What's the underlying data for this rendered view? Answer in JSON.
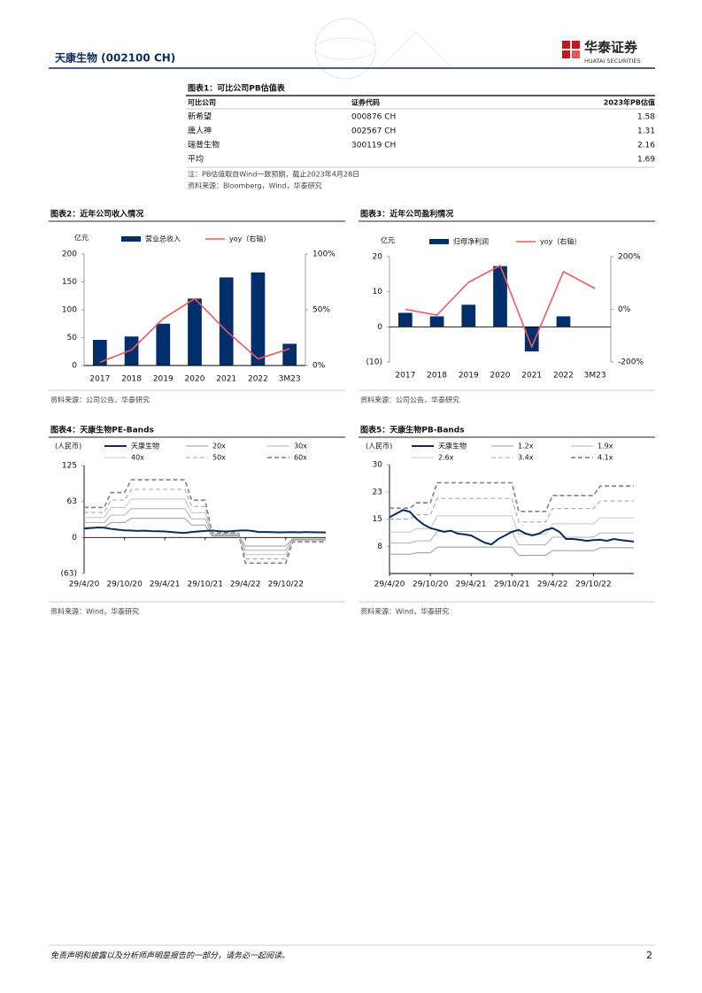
{
  "header": {
    "stock": "天康生物 (002100 CH)",
    "logo": "华泰证券",
    "logo_en": "HUATAI SECURITIES"
  },
  "table": {
    "title": "图表1：可比公司PB估值表",
    "columns": [
      "可比公司",
      "证券代码",
      "2023年PB估值"
    ],
    "rows": [
      {
        "company": "新希望",
        "code": "000876 CH",
        "pb": 1.58
      },
      {
        "company": "唐人神",
        "code": "002567 CH",
        "pb": 1.31
      },
      {
        "company": "瑞普生物",
        "code": "300119 CH",
        "pb": 2.16
      },
      {
        "company": "平均",
        "pb": 1.69
      }
    ],
    "note": "注：PB估值取自Wind一致预期，截止2023年4月28日",
    "source": "资料来源：Bloomberg，Wind，华泰研究"
  },
  "chart_data": [
    {
      "type": "combo",
      "title": "图表2：近年公司收入情况",
      "y_unit": "亿元",
      "categories": [
        "2017",
        "2018",
        "2019",
        "2020",
        "2021",
        "2022",
        "3M23"
      ],
      "series": [
        {
          "name": "营业总收入",
          "type": "bar",
          "color": "#002f6c",
          "values": [
            46,
            52,
            75,
            120,
            158,
            167,
            39
          ]
        },
        {
          "name": "yoy（右轴）",
          "type": "line",
          "axis": "y2",
          "color": "#f0585a",
          "values": [
            3,
            14,
            42,
            60,
            31,
            6,
            15
          ]
        }
      ],
      "ylim": [
        0,
        200
      ],
      "yticks": [
        0,
        50,
        100,
        150,
        200
      ],
      "y2lim": [
        0,
        100
      ],
      "y2ticks": [
        {
          "value": 0,
          "label": "0%"
        },
        {
          "value": 50,
          "label": "50%"
        },
        {
          "value": 100,
          "label": "100%"
        }
      ],
      "source": "资料来源：公司公告，华泰研究"
    },
    {
      "type": "combo",
      "title": "图表3：近年公司盈利情况",
      "y_unit": "亿元",
      "categories": [
        "2017",
        "2018",
        "2019",
        "2020",
        "2021",
        "2022",
        "3M23"
      ],
      "series": [
        {
          "name": "归母净利润",
          "type": "bar",
          "color": "#002f6c",
          "values": [
            4,
            3,
            6.3,
            17.3,
            -7,
            3,
            null
          ]
        },
        {
          "name": "yoy（右轴）",
          "type": "line",
          "axis": "y2",
          "color": "#f0585a",
          "values": [
            0,
            -22,
            103,
            166,
            -143,
            143,
            79
          ]
        }
      ],
      "ylim": [
        -10,
        20
      ],
      "yticks": [
        {
          "value": -10,
          "label": "(10)"
        },
        0,
        10,
        20
      ],
      "y2lim": [
        -200,
        200
      ],
      "y2ticks": [
        {
          "value": -200,
          "label": "-200%"
        },
        {
          "value": 0,
          "label": "0%"
        },
        {
          "value": 200,
          "label": "200%"
        }
      ],
      "source": "资料来源：公司公告，华泰研究"
    },
    {
      "type": "line",
      "title": "图表4：天康生物PE-Bands",
      "y_unit": "(人民币)",
      "x": [
        "2020-04-29",
        "2020-05-29",
        "2020-06-29",
        "2020-07-29",
        "2020-08-29",
        "2020-09-29",
        "2020-10-29",
        "2020-11-29",
        "2020-12-29",
        "2021-01-29",
        "2021-02-28",
        "2021-03-29",
        "2021-04-29",
        "2021-05-29",
        "2021-06-29",
        "2021-07-29",
        "2021-08-29",
        "2021-09-29",
        "2021-10-29",
        "2021-11-29",
        "2021-12-29",
        "2022-01-29",
        "2022-02-28",
        "2022-03-29",
        "2022-04-29",
        "2022-05-29",
        "2022-06-29",
        "2022-07-29",
        "2022-08-29",
        "2022-09-29",
        "2022-10-29",
        "2022-11-29",
        "2022-12-29",
        "2023-01-29",
        "2023-02-28",
        "2023-03-29",
        "2023-04-28"
      ],
      "series": [
        {
          "name": "天康生物",
          "color": "#0a2c5c",
          "line_width": 2,
          "values": [
            15.5,
            16.5,
            17.5,
            17,
            15,
            13.5,
            12.5,
            12,
            11.5,
            11.8,
            11,
            10.8,
            10.5,
            9.5,
            8.5,
            8,
            9.5,
            10.5,
            11.5,
            12,
            11,
            10.5,
            11,
            12,
            12.5,
            11.5,
            9.5,
            9.5,
            9.3,
            9,
            9.2,
            9.3,
            9,
            9.5,
            9.2,
            9,
            8.8
          ]
        },
        {
          "name": "20x",
          "color": "#9a9a9a",
          "line_width": 1,
          "values": [
            17.4,
            17.4,
            17.4,
            17.4,
            26,
            26,
            26,
            33.4,
            33.4,
            33.4,
            33.4,
            33.4,
            33.4,
            33.4,
            33.4,
            33.4,
            21.6,
            21.6,
            21.6,
            2.6,
            2.6,
            2.6,
            2.6,
            2.6,
            -14.8,
            -14.8,
            -14.8,
            -14.8,
            -14.8,
            -14.8,
            -14.8,
            -2.6,
            -2.6,
            -2.6,
            -2.6,
            -2.6,
            -2.6
          ]
        },
        {
          "name": "30x",
          "color": "#b0b0b0",
          "line_width": 1,
          "values": [
            26.1,
            26.1,
            26.1,
            26.1,
            39,
            39,
            39,
            50.1,
            50.1,
            50.1,
            50.1,
            50.1,
            50.1,
            50.1,
            50.1,
            50.1,
            32.4,
            32.4,
            32.4,
            3.9,
            3.9,
            3.9,
            3.9,
            3.9,
            -22.2,
            -22.2,
            -22.2,
            -22.2,
            -22.2,
            -22.2,
            -22.2,
            -3.9,
            -3.9,
            -3.9,
            -3.9,
            -3.9,
            -3.9
          ]
        },
        {
          "name": "40x",
          "color": "#c4c4c4",
          "line_width": 1,
          "values": [
            34.8,
            34.8,
            34.8,
            34.8,
            52,
            52,
            52,
            66.8,
            66.8,
            66.8,
            66.8,
            66.8,
            66.8,
            66.8,
            66.8,
            66.8,
            43.2,
            43.2,
            43.2,
            5.2,
            5.2,
            5.2,
            5.2,
            5.2,
            -29.6,
            -29.6,
            -29.6,
            -29.6,
            -29.6,
            -29.6,
            -29.6,
            -5.2,
            -5.2,
            -5.2,
            -5.2,
            -5.2,
            -5.2
          ]
        },
        {
          "name": "50x",
          "color": "#a0a0a0",
          "line_width": 1,
          "dash": true,
          "values": [
            43.5,
            43.5,
            43.5,
            43.5,
            65,
            65,
            65,
            83.5,
            83.5,
            83.5,
            83.5,
            83.5,
            83.5,
            83.5,
            83.5,
            83.5,
            54,
            54,
            54,
            6.5,
            6.5,
            6.5,
            6.5,
            6.5,
            -37,
            -37,
            -37,
            -37,
            -37,
            -37,
            -37,
            -6.5,
            -6.5,
            -6.5,
            -6.5,
            -6.5,
            -6.5
          ]
        },
        {
          "name": "60x",
          "color": "#8c8c8c",
          "line_width": 1.8,
          "dash": true,
          "values": [
            52.2,
            52.2,
            52.2,
            52.2,
            78,
            78,
            78,
            100.2,
            100.2,
            100.2,
            100.2,
            100.2,
            100.2,
            100.2,
            100.2,
            100.2,
            64.8,
            64.8,
            64.8,
            7.8,
            7.8,
            7.8,
            7.8,
            7.8,
            -44.4,
            -44.4,
            -44.4,
            -44.4,
            -44.4,
            -44.4,
            -44.4,
            -7.8,
            -7.8,
            -7.8,
            -7.8,
            -7.8,
            -7.8
          ]
        }
      ],
      "xlim": [
        "2020-04-29",
        "2023-04-28"
      ],
      "xticks": [
        {
          "value": "2020-04-29",
          "label": "29/4/20"
        },
        {
          "value": "2020-10-29",
          "label": "29/10/20"
        },
        {
          "value": "2021-04-29",
          "label": "29/4/21"
        },
        {
          "value": "2021-10-29",
          "label": "29/10/21"
        },
        {
          "value": "2022-04-29",
          "label": "29/4/22"
        },
        {
          "value": "2022-10-29",
          "label": "29/10/22"
        }
      ],
      "ylim": [
        -62.5,
        125
      ],
      "yticks": [
        {
          "value": -62.5,
          "label": "(63)"
        },
        0,
        {
          "value": 62.5,
          "label": "63"
        },
        125
      ],
      "source": "资料来源：Wind，华泰研究"
    },
    {
      "type": "line",
      "title": "图表5：天康生物PB-Bands",
      "y_unit": "(人民币)",
      "x": [
        "2020-04-29",
        "2020-05-29",
        "2020-06-29",
        "2020-07-29",
        "2020-08-29",
        "2020-09-29",
        "2020-10-29",
        "2020-11-29",
        "2020-12-29",
        "2021-01-29",
        "2021-02-28",
        "2021-03-29",
        "2021-04-29",
        "2021-05-29",
        "2021-06-29",
        "2021-07-29",
        "2021-08-29",
        "2021-09-29",
        "2021-10-29",
        "2021-11-29",
        "2021-12-29",
        "2022-01-29",
        "2022-02-28",
        "2022-03-29",
        "2022-04-29",
        "2022-05-29",
        "2022-06-29",
        "2022-07-29",
        "2022-08-29",
        "2022-09-29",
        "2022-10-29",
        "2022-11-29",
        "2022-12-29",
        "2023-01-29",
        "2023-02-28",
        "2023-03-29",
        "2023-04-28"
      ],
      "series": [
        {
          "name": "天康生物",
          "color": "#0a2c5c",
          "line_width": 2,
          "values": [
            15.5,
            16.5,
            17.5,
            17,
            15,
            13.5,
            12.5,
            12,
            11.5,
            11.8,
            11,
            10.8,
            10.5,
            9.5,
            8.5,
            8,
            9.5,
            10.5,
            11.5,
            12,
            11,
            10.5,
            11,
            12,
            12.5,
            11.5,
            9.5,
            9.5,
            9.3,
            9,
            9.2,
            9.3,
            9,
            9.5,
            9.2,
            9,
            8.8
          ]
        },
        {
          "name": "1.2x",
          "color": "#9a9a9a",
          "line_width": 1,
          "values": [
            5.3,
            5.3,
            5.3,
            5.3,
            5.7,
            5.7,
            5.7,
            7.3,
            7.3,
            7.3,
            7.3,
            7.3,
            7.3,
            7.3,
            7.3,
            7.3,
            7.3,
            7.3,
            7.3,
            5,
            5,
            5,
            5,
            5,
            6.3,
            6.3,
            6.3,
            6.3,
            6.3,
            6.3,
            6.3,
            7.1,
            7.1,
            7.1,
            7.1,
            7.1,
            7.1
          ]
        },
        {
          "name": "1.9x",
          "color": "#b0b0b0",
          "line_width": 1,
          "values": [
            8.4,
            8.4,
            8.4,
            8.4,
            9,
            9,
            9,
            11.6,
            11.6,
            11.6,
            11.6,
            11.6,
            11.6,
            11.6,
            11.6,
            11.6,
            11.6,
            11.6,
            11.6,
            7.9,
            7.9,
            7.9,
            7.9,
            7.9,
            10,
            10,
            10,
            10,
            10,
            10,
            10,
            11.2,
            11.2,
            11.2,
            11.2,
            11.2,
            11.2
          ]
        },
        {
          "name": "2.6x",
          "color": "#c4c4c4",
          "line_width": 1,
          "values": [
            11.4,
            11.4,
            11.4,
            11.4,
            12.4,
            12.4,
            12.4,
            15.9,
            15.9,
            15.9,
            15.9,
            15.9,
            15.9,
            15.9,
            15.9,
            15.9,
            15.9,
            15.9,
            15.9,
            10.8,
            10.8,
            10.8,
            10.8,
            10.8,
            13.7,
            13.7,
            13.7,
            13.7,
            13.7,
            13.7,
            13.7,
            15.3,
            15.3,
            15.3,
            15.3,
            15.3,
            15.3
          ]
        },
        {
          "name": "3.4x",
          "color": "#a0a0a0",
          "line_width": 1,
          "dash": true,
          "values": [
            15,
            15,
            15,
            15,
            16.2,
            16.2,
            16.2,
            20.7,
            20.7,
            20.7,
            20.7,
            20.7,
            20.7,
            20.7,
            20.7,
            20.7,
            20.7,
            20.7,
            20.7,
            14.2,
            14.2,
            14.2,
            14.2,
            14.2,
            17.9,
            17.9,
            17.9,
            17.9,
            17.9,
            17.9,
            17.9,
            20,
            20,
            20,
            20,
            20,
            20
          ]
        },
        {
          "name": "4.1x",
          "color": "#8c8c8c",
          "line_width": 1.8,
          "dash": true,
          "values": [
            18,
            18,
            18,
            18,
            19.5,
            19.5,
            19.5,
            25,
            25,
            25,
            25,
            25,
            25,
            25,
            25,
            25,
            25,
            25,
            25,
            17.1,
            17.1,
            17.1,
            17.1,
            17.1,
            21.5,
            21.5,
            21.5,
            21.5,
            21.5,
            21.5,
            21.5,
            24.1,
            24.1,
            24.1,
            24.1,
            24.1,
            24.1
          ]
        }
      ],
      "xlim": [
        "2020-04-29",
        "2023-04-28"
      ],
      "xticks": [
        {
          "value": "2020-04-29",
          "label": "29/4/20"
        },
        {
          "value": "2020-10-29",
          "label": "29/10/20"
        },
        {
          "value": "2021-04-29",
          "label": "29/4/21"
        },
        {
          "value": "2021-10-29",
          "label": "29/10/21"
        },
        {
          "value": "2022-04-29",
          "label": "29/4/22"
        },
        {
          "value": "2022-10-29",
          "label": "29/10/22"
        }
      ],
      "ylim": [
        0,
        30
      ],
      "yticks": [
        {
          "value": 7.5,
          "label": "8"
        },
        15,
        {
          "value": 22.5,
          "label": "23"
        },
        30
      ],
      "source": "资料来源：Wind，华泰研究"
    }
  ],
  "footer": {
    "disclaimer": "免责声明和披露以及分析师声明是报告的一部分，请务必一起阅读。",
    "page": "2"
  }
}
